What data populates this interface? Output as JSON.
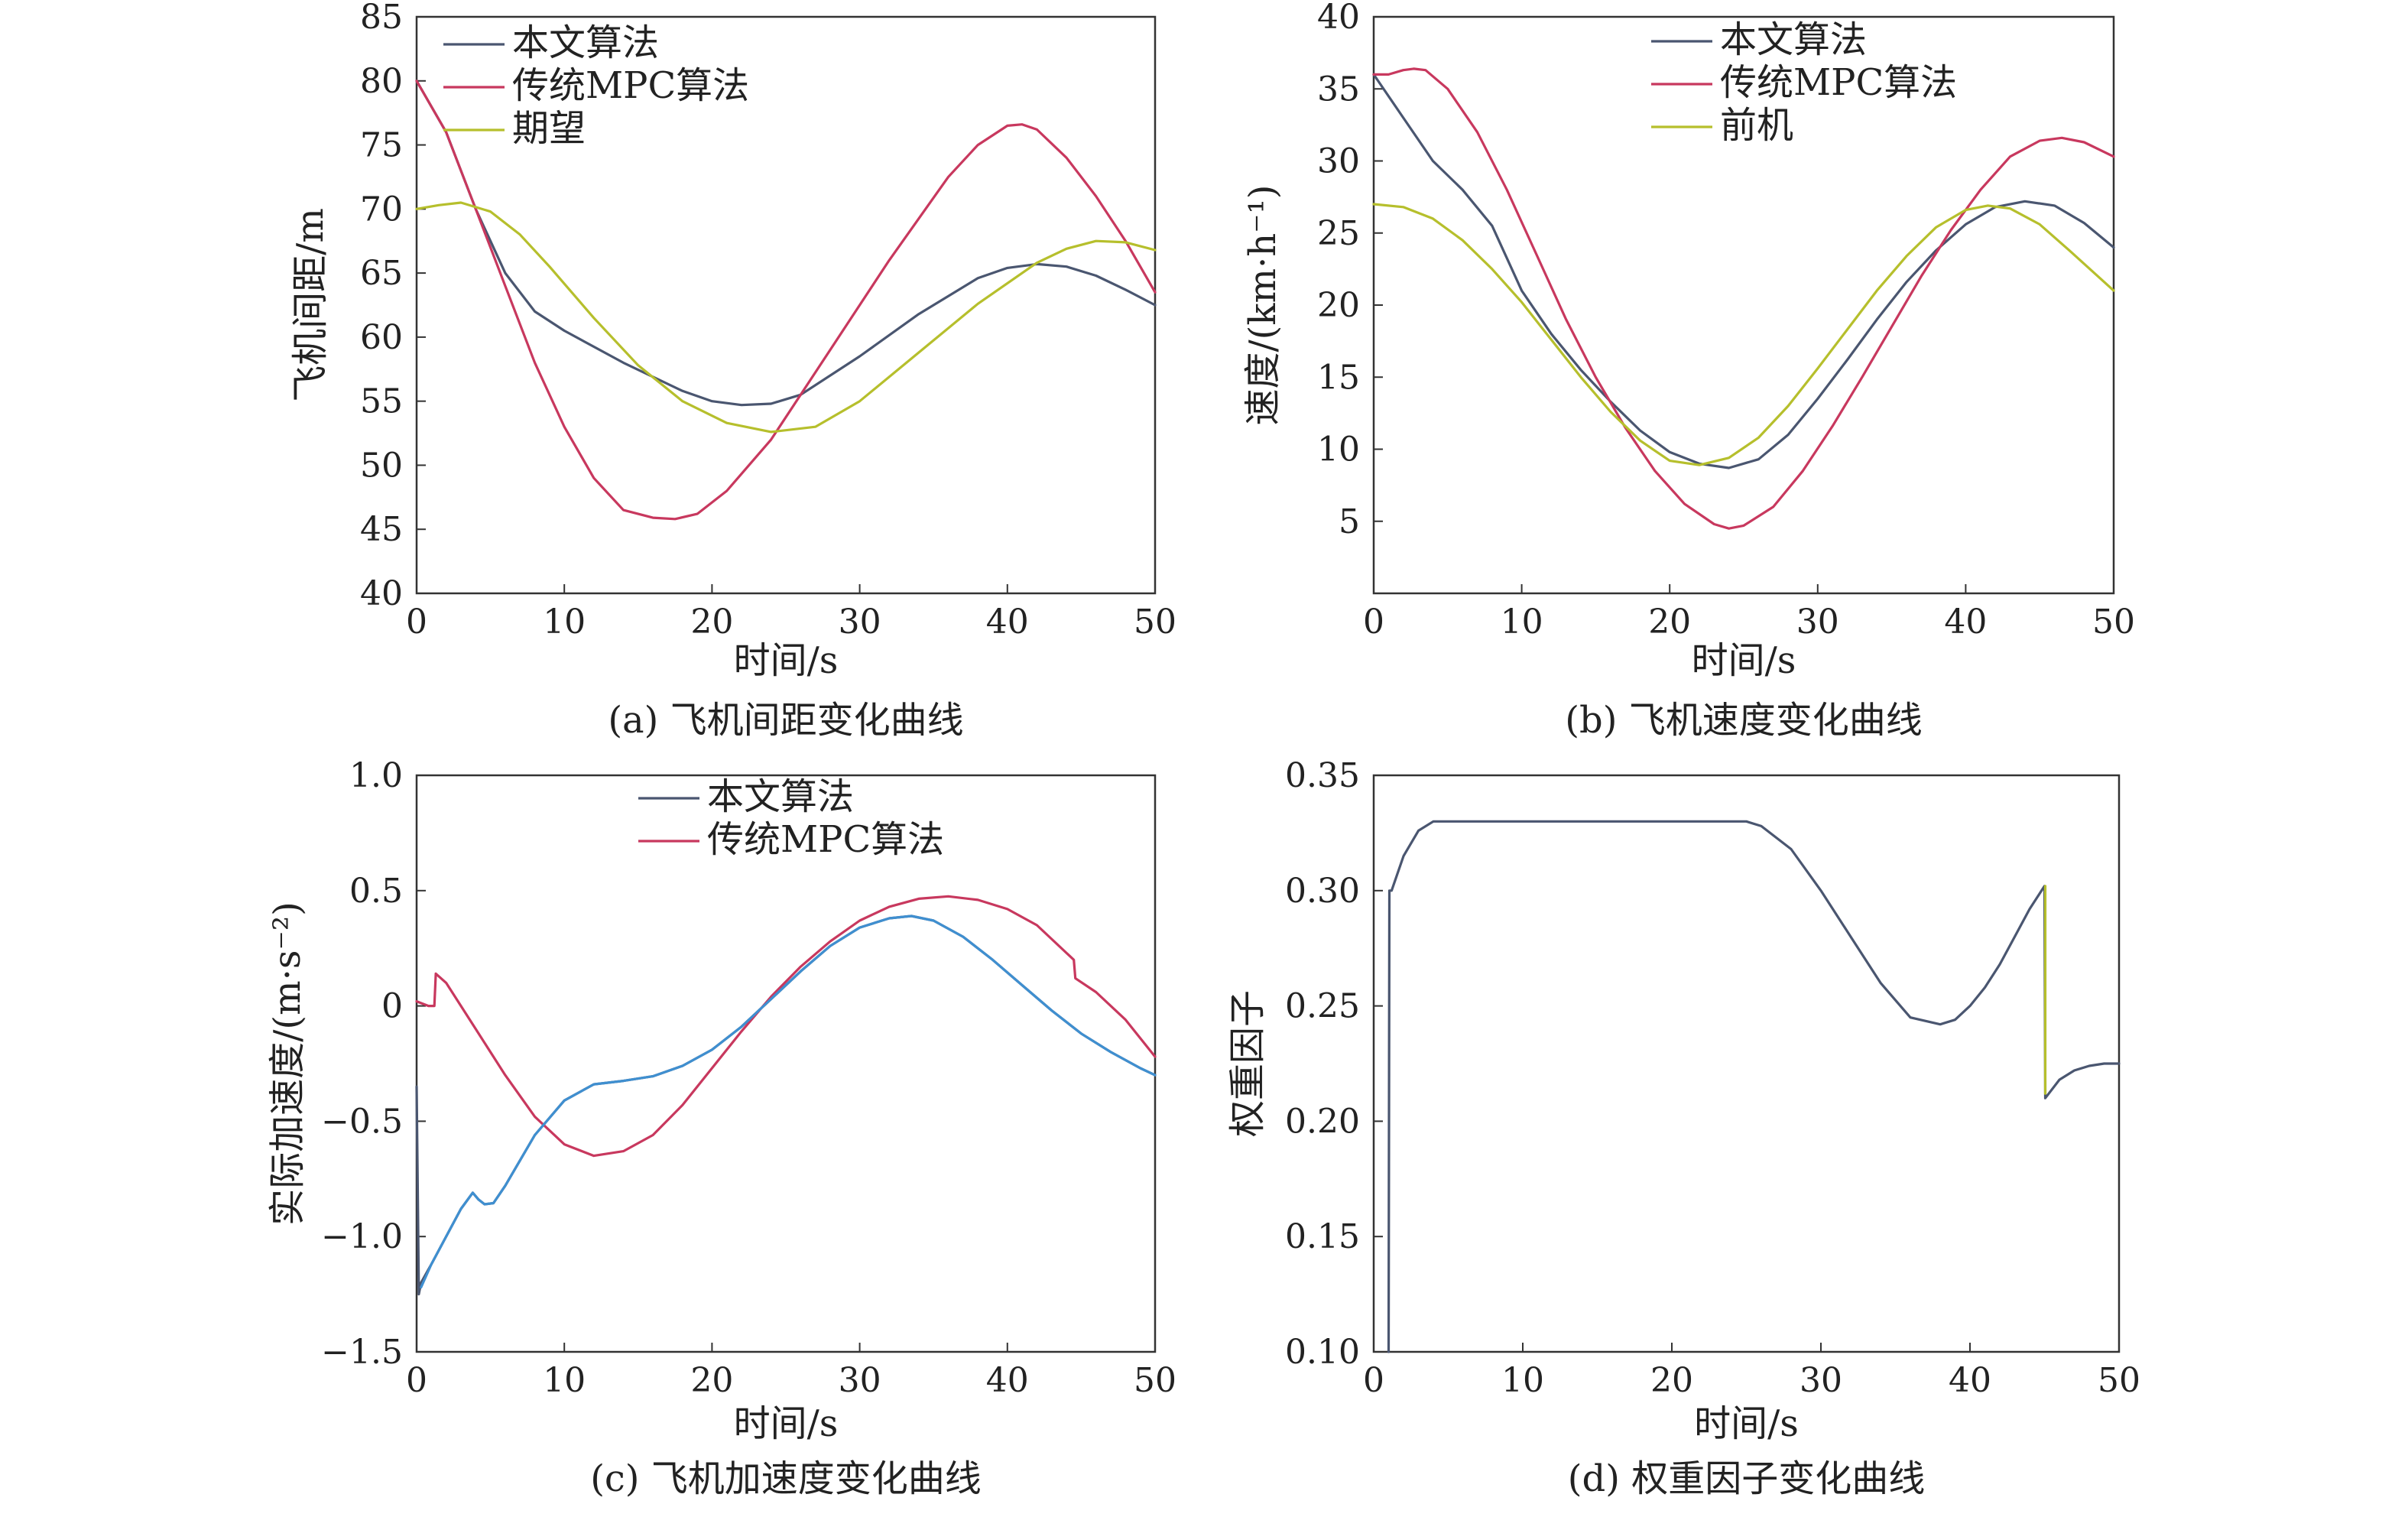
{
  "colors": {
    "dark": "#4a5670",
    "red": "#c8385e",
    "yellow": "#b6bf2c",
    "blue": "#3f8fd0"
  },
  "chart_data": [
    {
      "type": "line",
      "caption": "(a) 飞机间距变化曲线",
      "xlabel": "时间/s",
      "ylabel": "飞机间距/m",
      "xlim": [
        0,
        50
      ],
      "ylim": [
        40,
        85
      ],
      "xticks": [
        "0",
        "10",
        "20",
        "30",
        "40",
        "50"
      ],
      "yticks": [
        "40",
        "45",
        "50",
        "55",
        "60",
        "65",
        "70",
        "75",
        "80",
        "85"
      ],
      "legend_position": "top-left",
      "series": [
        {
          "name": "本文算法",
          "color": "dark",
          "x": [
            0,
            2,
            4,
            6,
            8,
            10,
            14,
            18,
            20,
            22,
            24,
            26,
            30,
            34,
            38,
            40,
            42,
            44,
            46,
            48,
            50
          ],
          "y": [
            80,
            76,
            70,
            65,
            62,
            60.5,
            58,
            55.8,
            55,
            54.7,
            54.8,
            55.5,
            58.5,
            61.8,
            64.6,
            65.4,
            65.7,
            65.5,
            64.8,
            63.7,
            62.5
          ]
        },
        {
          "name": "传统MPC算法",
          "color": "red",
          "x": [
            0,
            2,
            4,
            6,
            8,
            10,
            12,
            14,
            16,
            17.5,
            19,
            21,
            24,
            28,
            32,
            36,
            38,
            40,
            41,
            42,
            44,
            46,
            48,
            50
          ],
          "y": [
            80,
            76,
            70,
            64,
            58,
            53,
            49,
            46.5,
            45.9,
            45.8,
            46.2,
            48,
            52,
            59,
            66,
            72.5,
            75,
            76.5,
            76.6,
            76.2,
            74,
            71,
            67.5,
            63.5
          ]
        },
        {
          "name": "期望",
          "color": "yellow",
          "x": [
            0,
            1.5,
            3,
            5,
            7,
            9,
            12,
            15,
            18,
            21,
            24,
            27,
            30,
            34,
            38,
            42,
            44,
            46,
            48,
            50
          ],
          "y": [
            70,
            70.3,
            70.5,
            69.8,
            68,
            65.5,
            61.5,
            57.8,
            55,
            53.3,
            52.6,
            53,
            55,
            58.8,
            62.6,
            65.8,
            66.9,
            67.5,
            67.4,
            66.8
          ]
        }
      ]
    },
    {
      "type": "line",
      "caption": "(b) 飞机速度变化曲线",
      "xlabel": "时间/s",
      "ylabel": "速度/(km·h⁻¹)",
      "xlim": [
        0,
        50
      ],
      "ylim": [
        0,
        40
      ],
      "xticks": [
        "0",
        "10",
        "20",
        "30",
        "40",
        "50"
      ],
      "yticks": [
        "",
        "5",
        "10",
        "15",
        "20",
        "25",
        "30",
        "35",
        "40"
      ],
      "legend_position": "top-right",
      "series": [
        {
          "name": "本文算法",
          "color": "dark",
          "x": [
            0,
            2,
            4,
            6,
            8,
            10,
            12,
            14,
            16,
            18,
            20,
            22,
            24,
            26,
            28,
            30,
            32,
            34,
            36,
            38,
            40,
            42,
            44,
            46,
            48,
            50
          ],
          "y": [
            36,
            33,
            30,
            28,
            25.5,
            21,
            18,
            15.5,
            13.3,
            11.3,
            9.8,
            9,
            8.7,
            9.3,
            11,
            13.5,
            16.2,
            19,
            21.6,
            23.8,
            25.6,
            26.8,
            27.2,
            26.9,
            25.7,
            24
          ]
        },
        {
          "name": "传统MPC算法",
          "color": "red",
          "x": [
            0,
            1,
            2,
            2.7,
            3.5,
            5,
            7,
            9,
            11,
            13,
            15,
            17,
            19,
            21,
            23,
            24,
            25,
            27,
            29,
            31,
            33,
            35,
            37,
            39,
            41,
            43,
            45,
            46.5,
            48,
            50
          ],
          "y": [
            36,
            36,
            36.3,
            36.4,
            36.3,
            35,
            32,
            28,
            23.5,
            19,
            15,
            11.5,
            8.5,
            6.2,
            4.8,
            4.5,
            4.7,
            6,
            8.5,
            11.6,
            15,
            18.5,
            22,
            25.2,
            28,
            30.3,
            31.4,
            31.6,
            31.3,
            30.3
          ]
        },
        {
          "name": "前机",
          "color": "yellow",
          "x": [
            0,
            2,
            4,
            6,
            8,
            10,
            12,
            14,
            16,
            18,
            20,
            22,
            24,
            26,
            28,
            30,
            32,
            34,
            36,
            38,
            40,
            41.5,
            43,
            45,
            47,
            50
          ],
          "y": [
            27,
            26.8,
            26,
            24.5,
            22.5,
            20.2,
            17.6,
            15,
            12.6,
            10.6,
            9.2,
            8.9,
            9.4,
            10.8,
            13,
            15.6,
            18.3,
            21,
            23.4,
            25.4,
            26.6,
            26.9,
            26.7,
            25.6,
            23.8,
            21
          ]
        }
      ]
    },
    {
      "type": "line",
      "caption": "(c) 飞机加速度变化曲线",
      "xlabel": "时间/s",
      "ylabel": "实际加速度/(m·s⁻²)",
      "xlim": [
        0,
        50
      ],
      "ylim": [
        -1.5,
        1.0
      ],
      "xticks": [
        "0",
        "10",
        "20",
        "30",
        "40",
        "50"
      ],
      "yticks": [
        "−1.5",
        "−1.0",
        "−0.5",
        "0",
        "0.5",
        "1.0"
      ],
      "legend_position": "top-center",
      "series": [
        {
          "name": "本文算法",
          "color": "dark",
          "x": [
            0,
            0.15,
            0.3,
            1,
            2,
            3,
            3.8,
            4.2,
            4.6,
            5.2,
            6,
            8,
            10,
            12,
            14,
            16,
            18,
            20,
            22,
            24,
            26,
            28,
            30,
            32,
            33.5,
            35,
            37,
            39,
            41,
            43,
            45,
            47,
            49,
            50
          ],
          "y": [
            -0.35,
            -1.25,
            -1.2,
            -1.12,
            -1.0,
            -0.88,
            -0.81,
            -0.84,
            -0.86,
            -0.855,
            -0.78,
            -0.56,
            -0.41,
            -0.34,
            -0.325,
            -0.305,
            -0.26,
            -0.19,
            -0.09,
            0.03,
            0.15,
            0.26,
            0.34,
            0.38,
            0.39,
            0.37,
            0.3,
            0.2,
            0.09,
            -0.02,
            -0.12,
            -0.2,
            -0.27,
            -0.3
          ]
        },
        {
          "name": "传统MPC算法",
          "color": "red",
          "x": [
            0,
            0.4,
            0.8,
            1.2,
            1.3,
            2,
            4,
            6,
            8,
            10,
            12,
            14,
            16,
            18,
            20,
            22,
            24,
            26,
            28,
            30,
            32,
            34,
            36,
            38,
            40,
            42,
            44.5,
            44.6,
            46,
            48,
            50
          ],
          "y": [
            0.02,
            0.01,
            0,
            0,
            0.14,
            0.1,
            -0.1,
            -0.3,
            -0.48,
            -0.6,
            -0.65,
            -0.63,
            -0.56,
            -0.43,
            -0.27,
            -0.11,
            0.04,
            0.17,
            0.28,
            0.37,
            0.43,
            0.465,
            0.475,
            0.46,
            0.42,
            0.35,
            0.2,
            0.12,
            0.06,
            -0.06,
            -0.22
          ]
        },
        {
          "name": "",
          "color": "blue",
          "x": [
            0.3,
            1,
            2,
            3,
            3.8,
            4.2,
            4.6,
            5.2,
            6,
            8,
            10,
            12,
            14,
            16,
            18,
            20,
            22,
            24,
            26,
            28,
            30,
            32,
            33.5,
            35,
            37,
            39,
            41,
            43,
            45,
            47,
            49,
            50
          ],
          "y": [
            -1.22,
            -1.12,
            -1.0,
            -0.88,
            -0.81,
            -0.84,
            -0.86,
            -0.855,
            -0.78,
            -0.56,
            -0.41,
            -0.34,
            -0.325,
            -0.305,
            -0.26,
            -0.19,
            -0.09,
            0.03,
            0.15,
            0.26,
            0.34,
            0.38,
            0.39,
            0.37,
            0.3,
            0.2,
            0.09,
            -0.02,
            -0.12,
            -0.2,
            -0.27,
            -0.3
          ]
        }
      ]
    },
    {
      "type": "line",
      "caption": "(d) 权重因子变化曲线",
      "xlabel": "时间/s",
      "ylabel": "权重因子",
      "xlim": [
        0,
        50
      ],
      "ylim": [
        0.1,
        0.35
      ],
      "xticks": [
        "0",
        "10",
        "20",
        "30",
        "40",
        "50"
      ],
      "yticks": [
        "0.10",
        "0.15",
        "0.20",
        "0.25",
        "0.30",
        "0.35"
      ],
      "legend_position": "none",
      "series": [
        {
          "name": "",
          "color": "dark",
          "x": [
            1.0,
            1.05,
            1.2,
            2,
            3,
            4,
            10,
            20,
            24,
            25,
            26,
            28,
            30,
            32,
            34,
            36,
            38,
            39,
            40,
            41,
            42,
            43,
            44,
            45,
            45.05,
            46,
            47,
            48,
            49,
            50
          ],
          "y": [
            0.1,
            0.3,
            0.3,
            0.315,
            0.326,
            0.33,
            0.33,
            0.33,
            0.33,
            0.33,
            0.328,
            0.318,
            0.3,
            0.28,
            0.26,
            0.245,
            0.242,
            0.244,
            0.25,
            0.258,
            0.268,
            0.28,
            0.292,
            0.302,
            0.21,
            0.218,
            0.222,
            0.224,
            0.225,
            0.225
          ]
        },
        {
          "name": "",
          "color": "yellow",
          "x": [
            45.05,
            45.05
          ],
          "y": [
            0.302,
            0.212
          ]
        }
      ]
    }
  ]
}
